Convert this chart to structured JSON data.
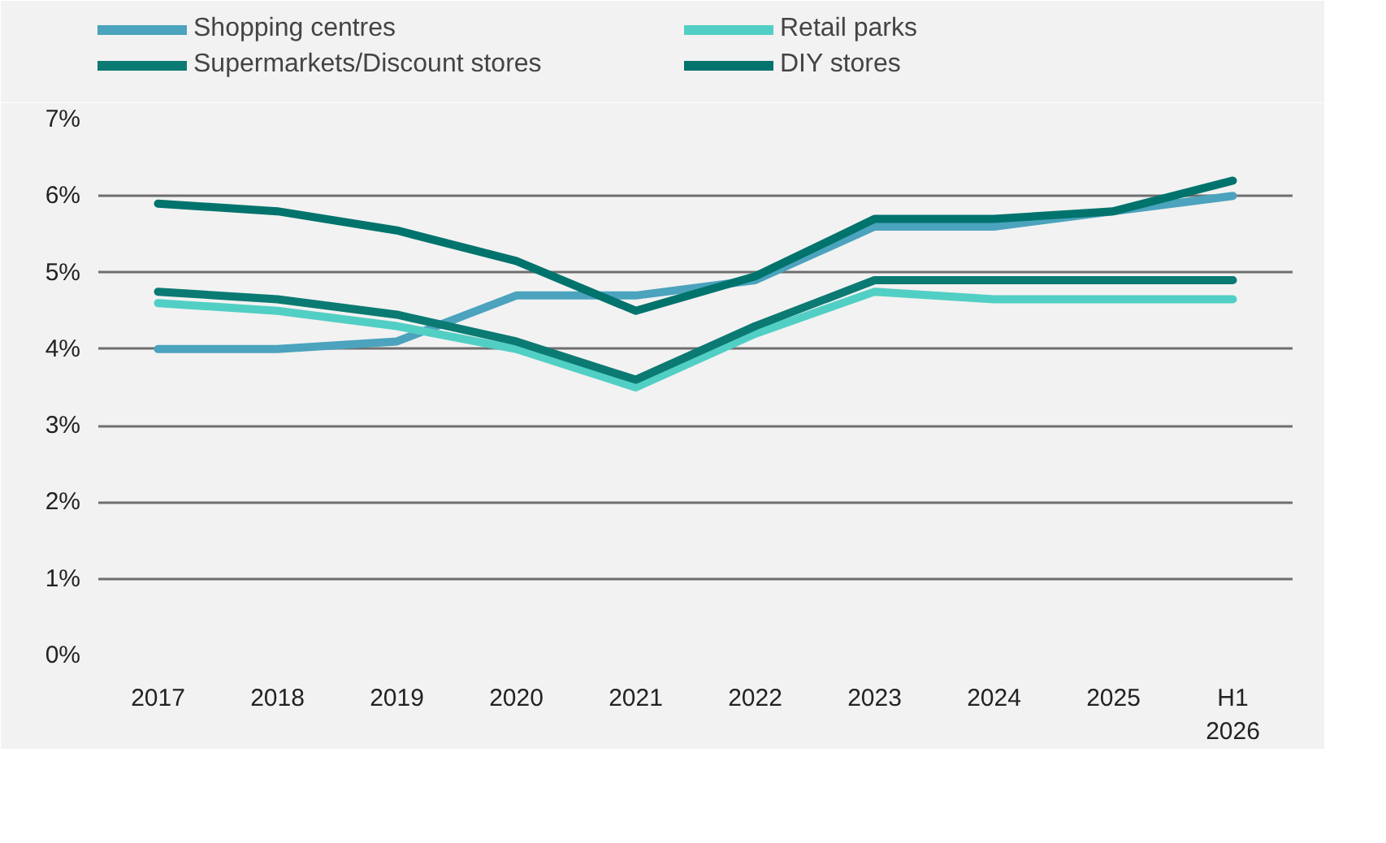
{
  "chart_data": {
    "type": "line",
    "categories": [
      "2017",
      "2018",
      "2019",
      "2020",
      "2021",
      "2022",
      "2023",
      "2024",
      "2025",
      "H1\n2026"
    ],
    "series": [
      {
        "name": "Shopping centres",
        "color": "#4ba3bd",
        "values": [
          4.0,
          4.0,
          4.1,
          4.7,
          4.7,
          4.9,
          5.6,
          5.6,
          5.8,
          6.0
        ]
      },
      {
        "name": "Retail parks",
        "color": "#52cfc4",
        "values": [
          4.6,
          4.5,
          4.3,
          4.0,
          3.5,
          4.2,
          4.75,
          4.65,
          4.65,
          4.65
        ]
      },
      {
        "name": "Supermarkets/Discount stores",
        "color": "#0b7a73",
        "values": [
          4.75,
          4.65,
          4.45,
          4.1,
          3.6,
          4.3,
          4.9,
          4.9,
          4.9,
          4.9
        ]
      },
      {
        "name": "DIY stores",
        "color": "#00736d",
        "values": [
          5.9,
          5.8,
          5.55,
          5.15,
          4.5,
          4.95,
          5.7,
          5.7,
          5.8,
          6.2
        ]
      }
    ],
    "ylim": [
      0,
      7
    ],
    "yticks": [
      {
        "value": 0,
        "label": "0%"
      },
      {
        "value": 1,
        "label": "1%"
      },
      {
        "value": 2,
        "label": "2%"
      },
      {
        "value": 3,
        "label": "3%"
      },
      {
        "value": 4,
        "label": "4%"
      },
      {
        "value": 5,
        "label": "5%"
      },
      {
        "value": 6,
        "label": "6%"
      },
      {
        "value": 7,
        "label": "7%"
      }
    ],
    "grid": "y",
    "legend": "top",
    "line_style": "solid"
  }
}
